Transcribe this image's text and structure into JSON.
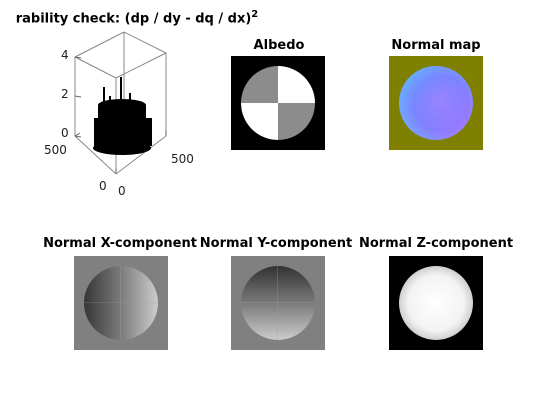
{
  "figure": {
    "plot3d": {
      "title": "rability check: (dp / dy - dq / dx)",
      "title_superscript": "2",
      "z_ticks": [
        "0",
        "2",
        "4"
      ],
      "left_axis_ticks": [
        "500",
        "0"
      ],
      "right_axis_ticks": [
        "0",
        "500"
      ]
    },
    "albedo": {
      "title": "Albedo"
    },
    "normal_map": {
      "title": "Normal map"
    },
    "normal_x": {
      "title": "Normal X-component"
    },
    "normal_y": {
      "title": "Normal Y-component"
    },
    "normal_z": {
      "title": "Normal Z-component"
    }
  },
  "colors": {
    "normal_map_background": "#808000",
    "normal_x_background": "#808080",
    "normal_y_background": "#808080",
    "normal_z_background": "#000000",
    "albedo_background": "#000000"
  }
}
